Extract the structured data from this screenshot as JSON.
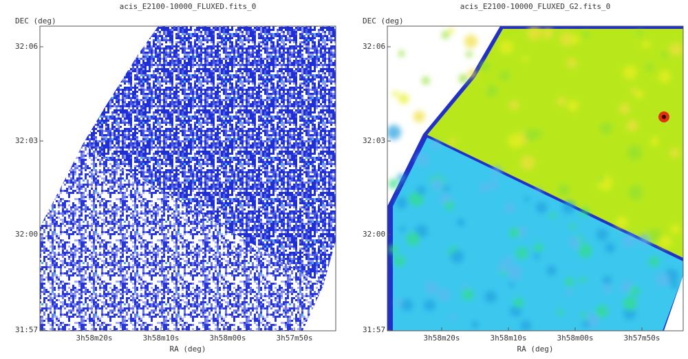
{
  "panels": [
    {
      "title": "acis_E2100-10000_FLUXED.fits_0",
      "y_label": "DEC (deg)",
      "x_label": "RA (deg)",
      "y_ticks": [
        "32:06",
        "32:03",
        "32:00",
        "31:57"
      ],
      "x_ticks": [
        "3h58m20s",
        "3h58m10s",
        "3h58m00s",
        "3h57m50s"
      ]
    },
    {
      "title": "acis_E2100-10000_FLUXED_G2.fits_0",
      "y_label": "DEC (deg)",
      "x_label": "RA (deg)",
      "y_ticks": [
        "32:06",
        "32:03",
        "32:00",
        "31:57"
      ],
      "x_ticks": [
        "3h58m20s",
        "3h58m10s",
        "3h58m00s",
        "3h57m50s"
      ]
    }
  ]
}
